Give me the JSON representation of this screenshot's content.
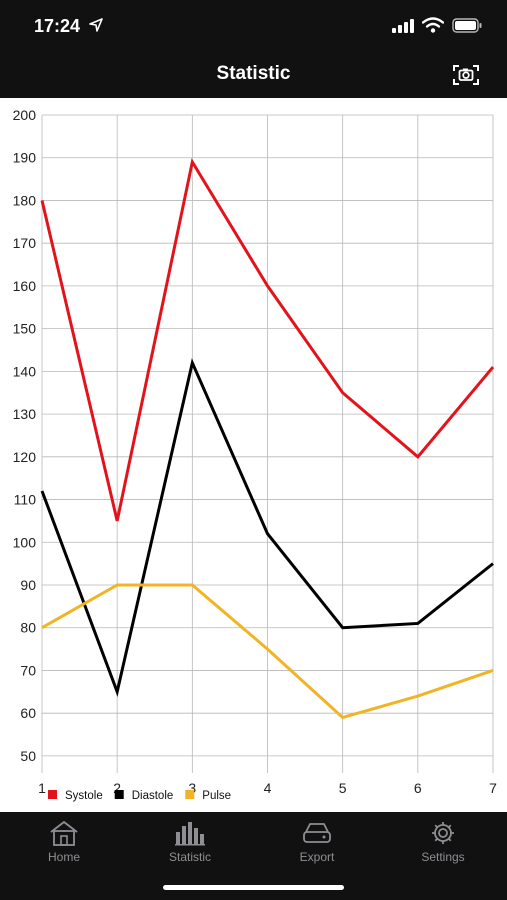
{
  "status_bar": {
    "time": "17:24"
  },
  "nav": {
    "title": "Statistic"
  },
  "chart_data": {
    "type": "line",
    "x": [
      1,
      2,
      3,
      4,
      5,
      6,
      7
    ],
    "xlim": [
      1,
      7
    ],
    "ylim": [
      46,
      200
    ],
    "y_ticks": [
      50,
      60,
      70,
      80,
      90,
      100,
      110,
      120,
      130,
      140,
      150,
      160,
      170,
      180,
      190,
      200
    ],
    "grid": true,
    "legend_position": "bottom-left",
    "series": [
      {
        "name": "Systole",
        "color": "#e3131b",
        "values": [
          180,
          105,
          189,
          160,
          135,
          120,
          141
        ]
      },
      {
        "name": "Diastole",
        "color": "#000000",
        "values": [
          112,
          65,
          142,
          102,
          80,
          81,
          95
        ]
      },
      {
        "name": "Pulse",
        "color": "#f0b424",
        "values": [
          80,
          90,
          90,
          75,
          59,
          64,
          70
        ]
      }
    ]
  },
  "tabs": [
    {
      "label": "Home",
      "icon": "home-icon"
    },
    {
      "label": "Statistic",
      "icon": "chart-bars-icon"
    },
    {
      "label": "Export",
      "icon": "drive-icon"
    },
    {
      "label": "Settings",
      "icon": "gear-icon"
    }
  ]
}
